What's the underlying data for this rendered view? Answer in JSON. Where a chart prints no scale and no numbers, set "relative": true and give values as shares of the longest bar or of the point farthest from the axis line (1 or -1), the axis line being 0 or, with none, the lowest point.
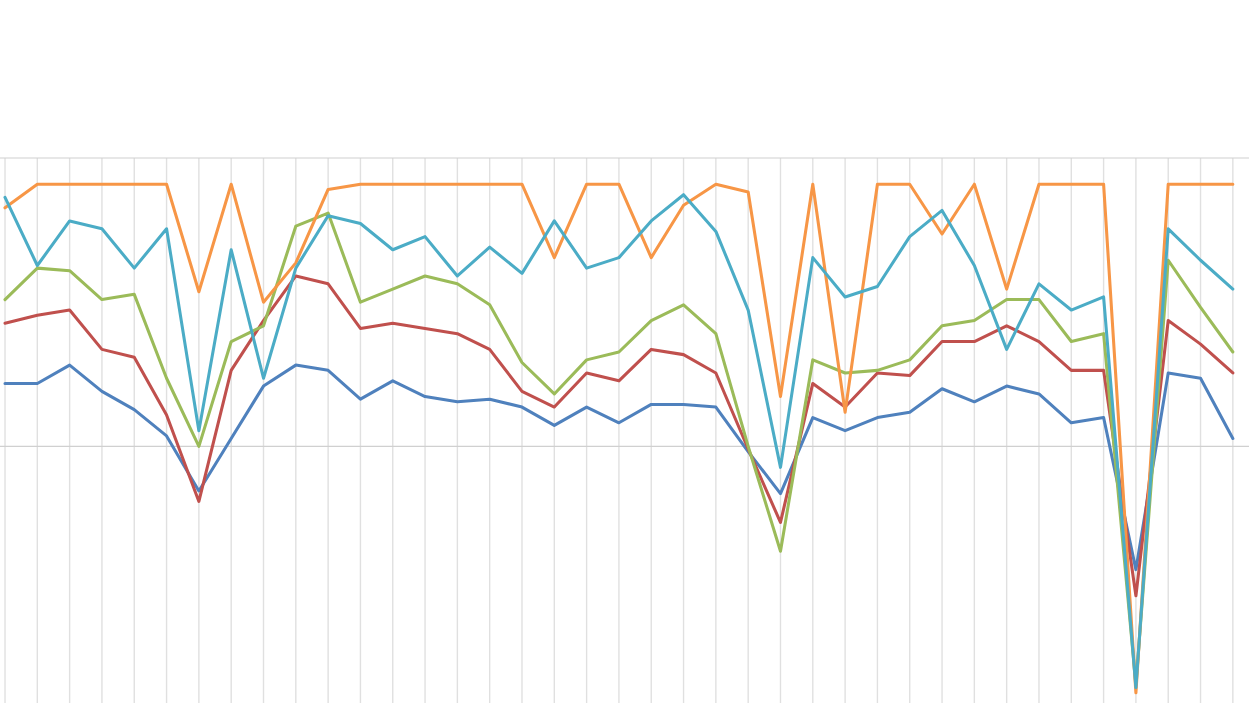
{
  "chart_data": {
    "type": "line",
    "relative": true,
    "grid": "x",
    "marker": "none",
    "line_style": "solid",
    "categories": [
      null,
      null,
      null,
      null,
      null,
      null,
      null,
      null,
      null,
      null,
      null,
      null,
      null,
      null,
      null,
      null,
      null,
      null,
      null,
      null,
      null,
      null,
      null,
      null,
      null,
      null,
      null,
      null,
      null,
      null,
      null,
      null,
      null,
      null,
      null,
      null,
      null,
      null,
      null
    ],
    "series": [
      {
        "color": "#4f81bd",
        "values": [
          0.24,
          0.24,
          0.31,
          0.21,
          0.14,
          0.04,
          -0.17,
          0.03,
          0.23,
          0.31,
          0.29,
          0.18,
          0.25,
          0.19,
          0.17,
          0.18,
          0.15,
          0.08,
          0.15,
          0.09,
          0.16,
          0.16,
          0.15,
          -0.02,
          -0.18,
          0.11,
          0.06,
          0.11,
          0.13,
          0.22,
          0.17,
          0.23,
          0.2,
          0.09,
          0.11,
          -0.47,
          0.28,
          0.26,
          0.03
        ]
      },
      {
        "color": "#c0504d",
        "values": [
          0.47,
          0.5,
          0.52,
          0.37,
          0.34,
          0.12,
          -0.21,
          0.29,
          0.48,
          0.65,
          0.62,
          0.45,
          0.47,
          0.45,
          0.43,
          0.37,
          0.21,
          0.15,
          0.28,
          0.25,
          0.37,
          0.35,
          0.28,
          -0.01,
          -0.29,
          0.24,
          0.15,
          0.28,
          0.27,
          0.4,
          0.4,
          0.46,
          0.4,
          0.29,
          0.29,
          -0.57,
          0.48,
          0.39,
          0.28
        ]
      },
      {
        "color": "#9bbb59",
        "values": [
          0.56,
          0.68,
          0.67,
          0.56,
          0.58,
          0.26,
          0.0,
          0.4,
          0.46,
          0.84,
          0.89,
          0.55,
          0.6,
          0.65,
          0.62,
          0.54,
          0.32,
          0.2,
          0.33,
          0.36,
          0.48,
          0.54,
          0.43,
          0.0,
          -0.4,
          0.33,
          0.28,
          0.29,
          0.33,
          0.46,
          0.48,
          0.56,
          0.56,
          0.4,
          0.43,
          -0.91,
          0.71,
          0.53,
          0.36
        ]
      },
      {
        "color": "#4bacc6",
        "values": [
          0.95,
          0.69,
          0.86,
          0.83,
          0.68,
          0.83,
          0.06,
          0.75,
          0.26,
          0.68,
          0.88,
          0.85,
          0.75,
          0.8,
          0.65,
          0.76,
          0.66,
          0.86,
          0.68,
          0.72,
          0.86,
          0.96,
          0.82,
          0.52,
          -0.08,
          0.72,
          0.57,
          0.61,
          0.8,
          0.9,
          0.69,
          0.37,
          0.62,
          0.52,
          0.57,
          -0.92,
          0.83,
          0.71,
          0.6
        ]
      },
      {
        "color": "#f79646",
        "values": [
          0.91,
          1,
          1,
          1,
          1,
          1,
          0.59,
          1,
          0.55,
          0.7,
          0.98,
          1,
          1,
          1,
          1,
          1,
          1,
          0.72,
          1,
          1,
          0.72,
          0.92,
          1,
          0.97,
          0.19,
          1,
          0.13,
          1,
          1,
          0.81,
          1,
          0.6,
          1,
          1,
          1,
          -0.94,
          1,
          1,
          1
        ]
      }
    ]
  }
}
